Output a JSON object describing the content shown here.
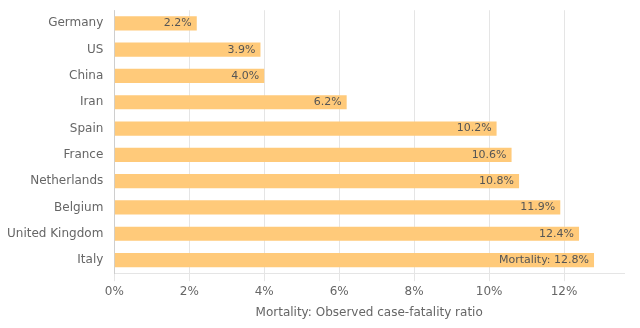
{
  "chart_data": {
    "type": "bar",
    "orientation": "horizontal",
    "categories": [
      "Germany",
      "US",
      "China",
      "Iran",
      "Spain",
      "France",
      "Netherlands",
      "Belgium",
      "United Kingdom",
      "Italy"
    ],
    "values": [
      2.2,
      3.9,
      4.0,
      6.2,
      10.2,
      10.6,
      10.8,
      11.9,
      12.4,
      12.8
    ],
    "value_labels": [
      "2.2%",
      "3.9%",
      "4.0%",
      "6.2%",
      "10.2%",
      "10.6%",
      "10.8%",
      "11.9%",
      "12.4%",
      "Mortality: 12.8%"
    ],
    "data_labels": true,
    "color": "#FFCA7A",
    "xlabel": "Mortality: Observed case-fatality ratio",
    "xlim": [
      0,
      13.6
    ],
    "xticks": [
      {
        "value": 0,
        "label": "0%"
      },
      {
        "value": 2,
        "label": "2%"
      },
      {
        "value": 4,
        "label": "4%"
      },
      {
        "value": 6,
        "label": "6%"
      },
      {
        "value": 8,
        "label": "8%"
      },
      {
        "value": 10,
        "label": "10%"
      },
      {
        "value": 12,
        "label": "12%"
      }
    ],
    "grid": true
  }
}
